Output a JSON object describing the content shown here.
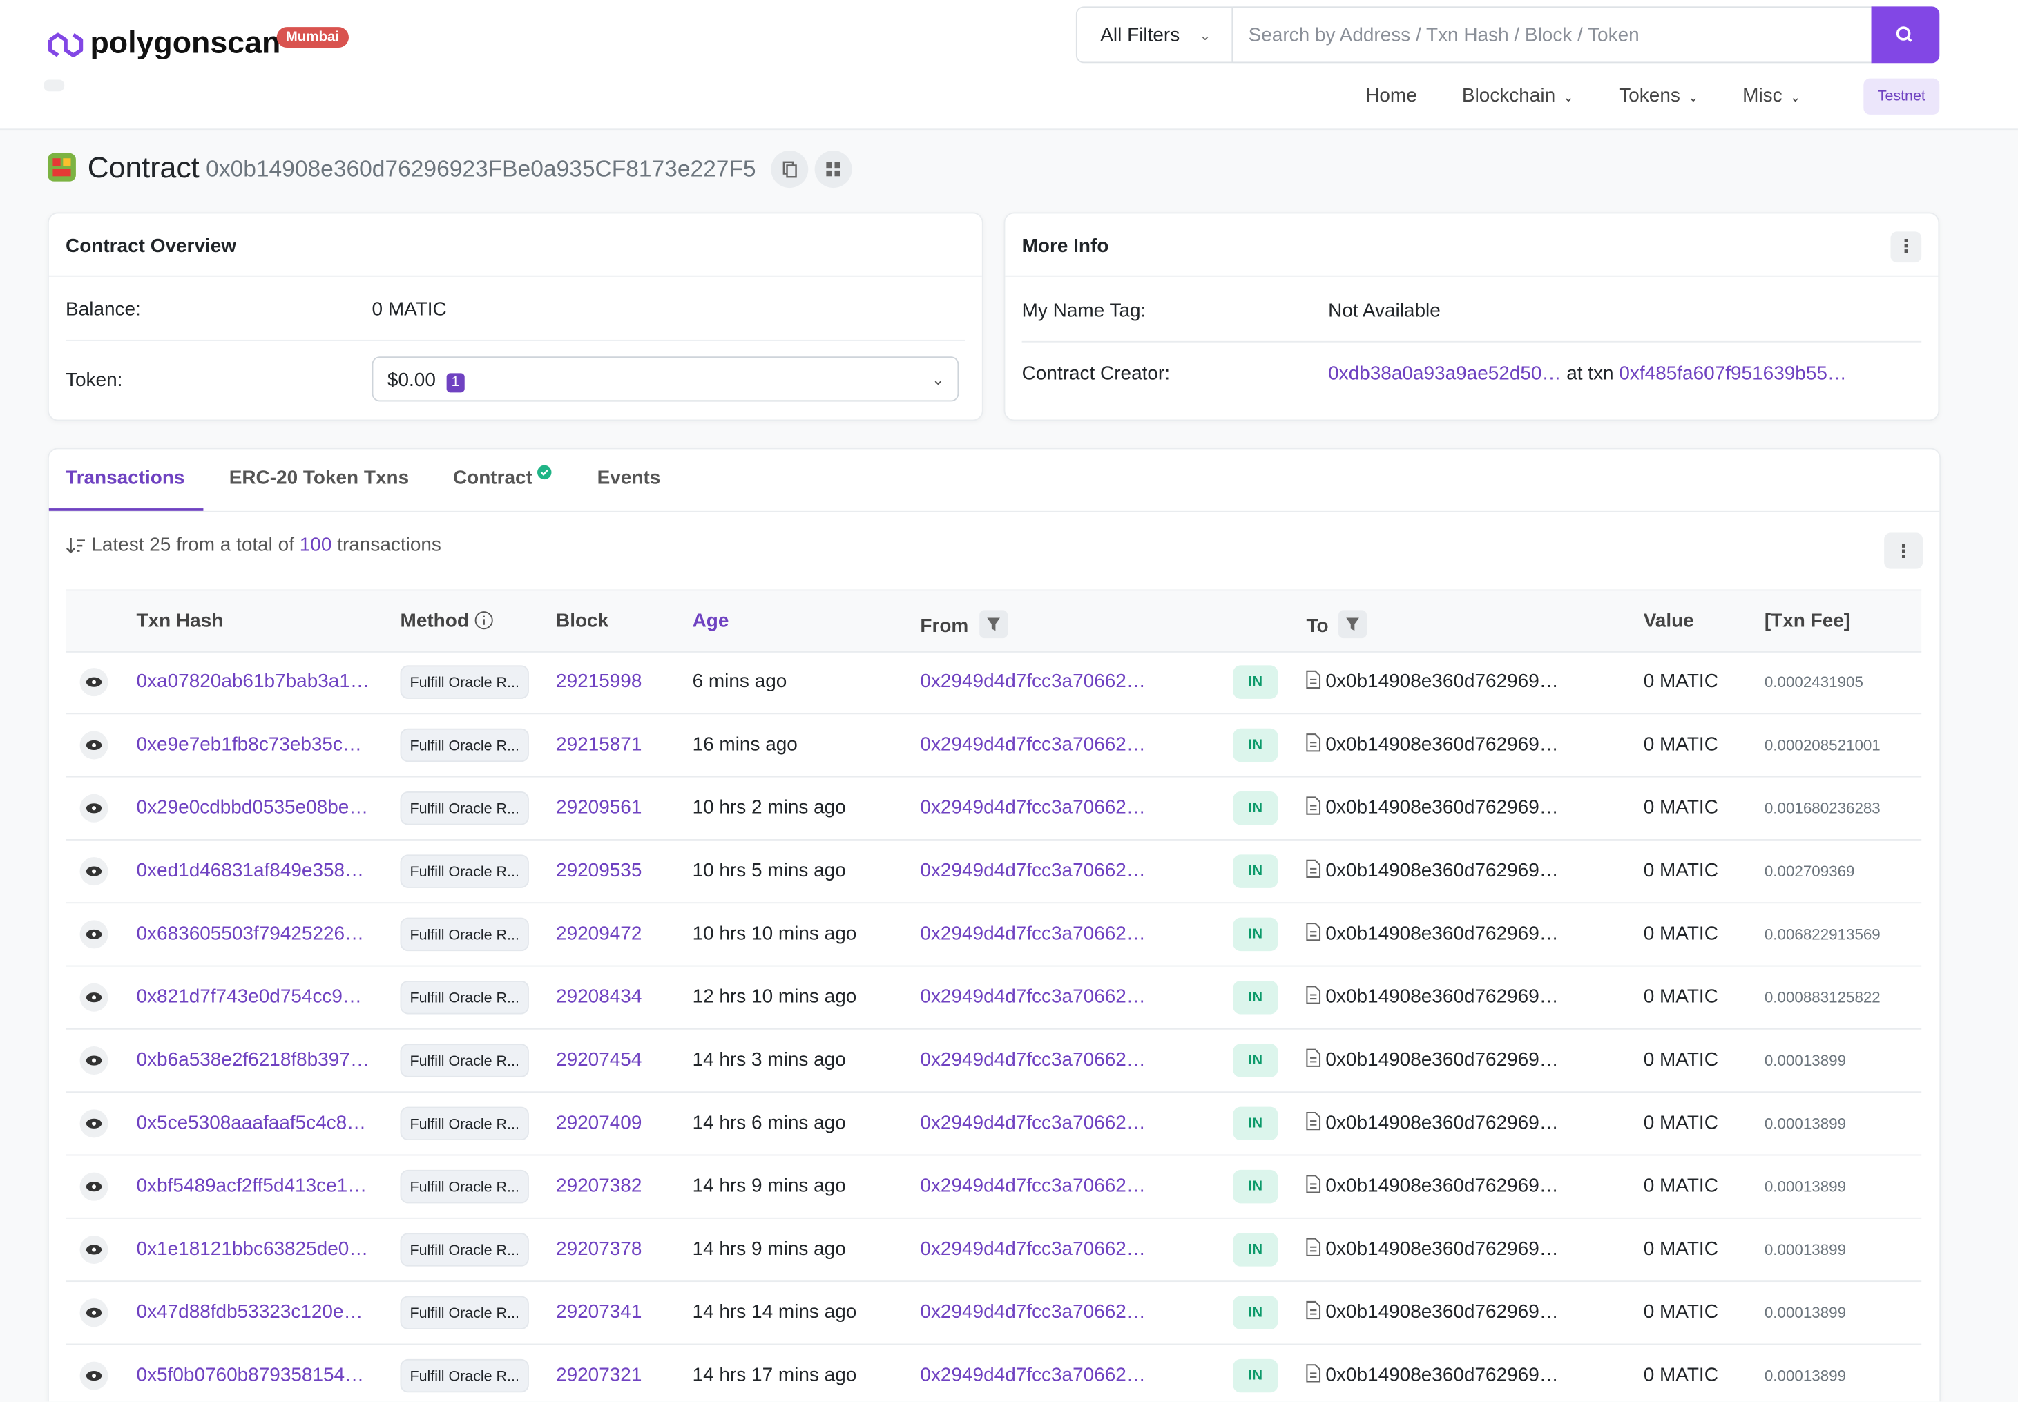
{
  "header": {
    "logo": "polygonscan",
    "network": "Mumbai",
    "filter": "All Filters",
    "search_placeholder": "Search by Address / Txn Hash / Block / Token",
    "nav": [
      "Home",
      "Blockchain",
      "Tokens",
      "Misc"
    ],
    "testnet": "Testnet"
  },
  "contract": {
    "label": "Contract",
    "address": "0x0b14908e360d76296923FBe0a935CF8173e227F5"
  },
  "overview": {
    "title": "Contract Overview",
    "balance_label": "Balance:",
    "balance": "0 MATIC",
    "token_label": "Token:",
    "token_value": "$0.00",
    "token_count": "1"
  },
  "more_info": {
    "title": "More Info",
    "name_tag_label": "My Name Tag:",
    "name_tag": "Not Available",
    "creator_label": "Contract Creator:",
    "creator": "0xdb38a0a93a9ae52d50…",
    "at_txn": "at txn",
    "creator_txn": "0xf485fa607f951639b55…"
  },
  "tabs": [
    "Transactions",
    "ERC-20 Token Txns",
    "Contract",
    "Events"
  ],
  "summary": {
    "prefix": "Latest 25 from a total of",
    "total": "100",
    "suffix": "transactions"
  },
  "table": {
    "headers": [
      "Txn Hash",
      "Method",
      "Block",
      "Age",
      "From",
      "To",
      "Value",
      "[Txn Fee]"
    ],
    "rows": [
      [
        "0xa07820ab61b7bab3a1…",
        "Fulfill Oracle R...",
        "29215998",
        "6 mins ago",
        "0x2949d4d7fcc3a70662…",
        "IN",
        "0x0b14908e360d762969…",
        "0 MATIC",
        "0.0002431905"
      ],
      [
        "0xe9e7eb1fb8c73eb35c…",
        "Fulfill Oracle R...",
        "29215871",
        "16 mins ago",
        "0x2949d4d7fcc3a70662…",
        "IN",
        "0x0b14908e360d762969…",
        "0 MATIC",
        "0.000208521001"
      ],
      [
        "0x29e0cdbbd0535e08be…",
        "Fulfill Oracle R...",
        "29209561",
        "10 hrs 2 mins ago",
        "0x2949d4d7fcc3a70662…",
        "IN",
        "0x0b14908e360d762969…",
        "0 MATIC",
        "0.001680236283"
      ],
      [
        "0xed1d46831af849e358…",
        "Fulfill Oracle R...",
        "29209535",
        "10 hrs 5 mins ago",
        "0x2949d4d7fcc3a70662…",
        "IN",
        "0x0b14908e360d762969…",
        "0 MATIC",
        "0.002709369"
      ],
      [
        "0x683605503f79425226…",
        "Fulfill Oracle R...",
        "29209472",
        "10 hrs 10 mins ago",
        "0x2949d4d7fcc3a70662…",
        "IN",
        "0x0b14908e360d762969…",
        "0 MATIC",
        "0.006822913569"
      ],
      [
        "0x821d7f743e0d754cc9…",
        "Fulfill Oracle R...",
        "29208434",
        "12 hrs 10 mins ago",
        "0x2949d4d7fcc3a70662…",
        "IN",
        "0x0b14908e360d762969…",
        "0 MATIC",
        "0.000883125822"
      ],
      [
        "0xb6a538e2f6218f8b397…",
        "Fulfill Oracle R...",
        "29207454",
        "14 hrs 3 mins ago",
        "0x2949d4d7fcc3a70662…",
        "IN",
        "0x0b14908e360d762969…",
        "0 MATIC",
        "0.00013899"
      ],
      [
        "0x5ce5308aaafaaf5c4c8…",
        "Fulfill Oracle R...",
        "29207409",
        "14 hrs 6 mins ago",
        "0x2949d4d7fcc3a70662…",
        "IN",
        "0x0b14908e360d762969…",
        "0 MATIC",
        "0.00013899"
      ],
      [
        "0xbf5489acf2ff5d413ce1…",
        "Fulfill Oracle R...",
        "29207382",
        "14 hrs 9 mins ago",
        "0x2949d4d7fcc3a70662…",
        "IN",
        "0x0b14908e360d762969…",
        "0 MATIC",
        "0.00013899"
      ],
      [
        "0x1e18121bbc63825de0…",
        "Fulfill Oracle R...",
        "29207378",
        "14 hrs 9 mins ago",
        "0x2949d4d7fcc3a70662…",
        "IN",
        "0x0b14908e360d762969…",
        "0 MATIC",
        "0.00013899"
      ],
      [
        "0x47d88fdb53323c120e…",
        "Fulfill Oracle R...",
        "29207341",
        "14 hrs 14 mins ago",
        "0x2949d4d7fcc3a70662…",
        "IN",
        "0x0b14908e360d762969…",
        "0 MATIC",
        "0.00013899"
      ],
      [
        "0x5f0b0760b879358154…",
        "Fulfill Oracle R...",
        "29207321",
        "14 hrs 17 mins ago",
        "0x2949d4d7fcc3a70662…",
        "IN",
        "0x0b14908e360d762969…",
        "0 MATIC",
        "0.00013899"
      ]
    ]
  }
}
